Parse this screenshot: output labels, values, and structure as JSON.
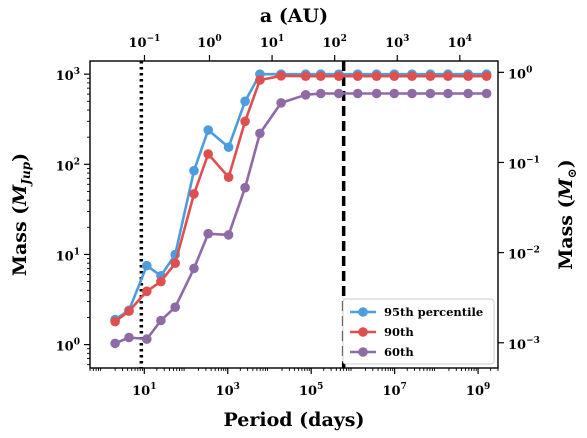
{
  "chart_data": {
    "type": "line",
    "xlabel": "Period (days)",
    "x_scale": "log",
    "xlim": [
      0.5,
      3000000000
    ],
    "ylabel_left": "Mass (M_Jup)",
    "ylabel_left_main": "Mass (",
    "ylabel_left_symbol": "M",
    "ylabel_left_sub": "Jup",
    "ylabel_left_close": ")",
    "y_scale": "log",
    "ylim": [
      0.55,
      1400
    ],
    "top_axis_label": "a (AU)",
    "top_axis_scale": "log",
    "ylabel_right_main": "Mass (",
    "ylabel_right_symbol": "M",
    "ylabel_right_sub": "⊙",
    "ylabel_right_close": ")",
    "x_ticks": [
      {
        "value": 10,
        "base": "10",
        "exp": "1"
      },
      {
        "value": 1000,
        "base": "10",
        "exp": "3"
      },
      {
        "value": 100000,
        "base": "10",
        "exp": "5"
      },
      {
        "value": 10000000,
        "base": "10",
        "exp": "7"
      },
      {
        "value": 1000000000,
        "base": "10",
        "exp": "9"
      }
    ],
    "y_ticks": [
      {
        "value": 1,
        "base": "10",
        "exp": "0"
      },
      {
        "value": 10,
        "base": "10",
        "exp": "1"
      },
      {
        "value": 100,
        "base": "10",
        "exp": "2"
      },
      {
        "value": 1000,
        "base": "10",
        "exp": "3"
      }
    ],
    "top_ticks": [
      {
        "period": 10.1,
        "base": "10",
        "exp": "−1"
      },
      {
        "period": 365.25,
        "base": "10",
        "exp": "0"
      },
      {
        "period": 11550,
        "base": "10",
        "exp": "1"
      },
      {
        "period": 365250,
        "base": "10",
        "exp": "2"
      },
      {
        "period": 11550000,
        "base": "10",
        "exp": "3"
      },
      {
        "period": 365250000,
        "base": "10",
        "exp": "4"
      }
    ],
    "right_ticks": [
      {
        "mass_jup": 1.048,
        "base": "10",
        "exp": "−3"
      },
      {
        "mass_jup": 10.48,
        "base": "10",
        "exp": "−2"
      },
      {
        "mass_jup": 104.8,
        "base": "10",
        "exp": "−1"
      },
      {
        "mass_jup": 1048,
        "base": "10",
        "exp": "0"
      }
    ],
    "vlines": [
      {
        "x": 8.5,
        "style": "dotted",
        "color": "#000000"
      },
      {
        "x": 600000,
        "style": "dashed",
        "color": "#000000"
      }
    ],
    "x": [
      2,
      4.3,
      11.5,
      25,
      55,
      155,
      340,
      1050,
      2600,
      5900,
      19000,
      74000,
      170000,
      460000,
      1300000,
      3700000,
      9800000,
      26000000,
      72000000,
      190000000,
      580000000,
      1600000000
    ],
    "series": [
      {
        "name": "95th percentile",
        "color": "#4c9cde",
        "values": [
          1.9,
          2.4,
          7.5,
          5.8,
          10,
          85,
          240,
          155,
          500,
          1000,
          1000,
          1000,
          1000,
          1000,
          1000,
          1000,
          1000,
          1000,
          1000,
          1000,
          1000,
          1000
        ]
      },
      {
        "name": "90th",
        "color": "#de5050",
        "values": [
          1.8,
          2.35,
          3.9,
          5,
          8,
          47,
          130,
          72,
          300,
          860,
          960,
          950,
          950,
          950,
          950,
          950,
          950,
          950,
          950,
          950,
          950,
          950
        ]
      },
      {
        "name": "60th",
        "color": "#8e6aa6",
        "values": [
          1.03,
          1.2,
          1.15,
          1.85,
          2.6,
          7,
          17,
          16.5,
          55,
          220,
          480,
          590,
          610,
          610,
          610,
          610,
          610,
          610,
          610,
          610,
          610,
          610
        ]
      }
    ],
    "legend_position": "lower-right",
    "grid": false
  }
}
